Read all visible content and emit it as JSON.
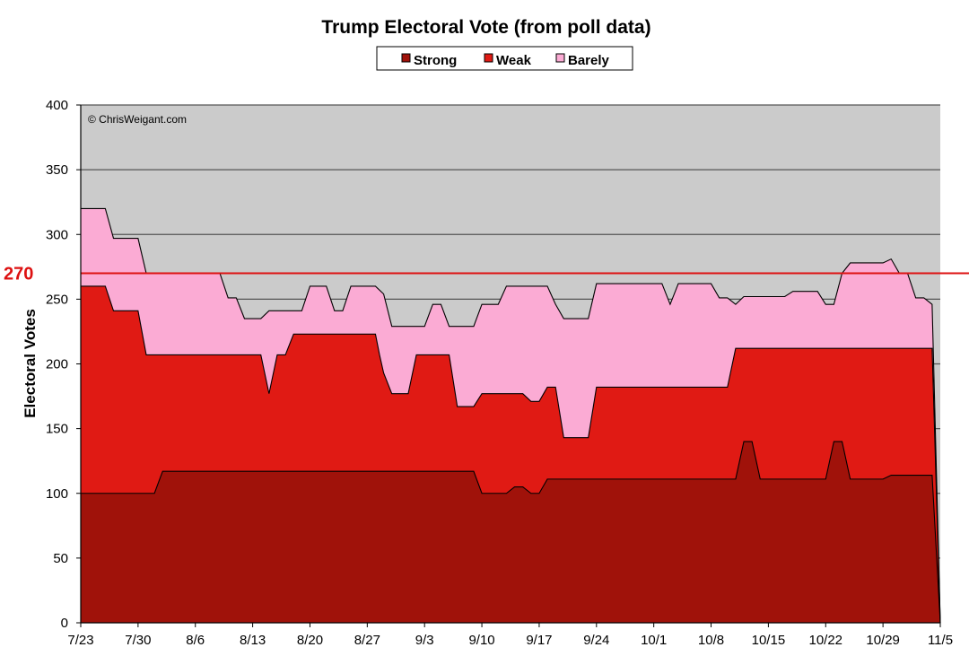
{
  "chart_data": {
    "type": "area",
    "title": "Trump Electoral Vote (from poll data)",
    "ylabel": "Electoral Votes",
    "xlabel": "",
    "ylim": [
      0,
      400
    ],
    "yticks": [
      0,
      50,
      100,
      150,
      200,
      250,
      300,
      350,
      400
    ],
    "x_tick_labels": [
      "7/23",
      "7/30",
      "8/6",
      "8/13",
      "8/20",
      "8/27",
      "9/3",
      "9/10",
      "9/17",
      "9/24",
      "10/1",
      "10/8",
      "10/15",
      "10/22",
      "10/29",
      "11/5"
    ],
    "x_range_days": [
      0,
      105
    ],
    "grid": true,
    "stacked": true,
    "legend_position": "top-center",
    "annotation": "© ChrisWeigant.com",
    "reference_line": {
      "value": 270,
      "label": "270",
      "color": "#dd1111"
    },
    "series": [
      {
        "name": "Strong",
        "color": "#a0120a",
        "points": [
          [
            0,
            100
          ],
          [
            3,
            100
          ],
          [
            9,
            100
          ],
          [
            10,
            117
          ],
          [
            48,
            117
          ],
          [
            49,
            100
          ],
          [
            52,
            100
          ],
          [
            53,
            105
          ],
          [
            54,
            105
          ],
          [
            55,
            100
          ],
          [
            56,
            100
          ],
          [
            57,
            111
          ],
          [
            80,
            111
          ],
          [
            81,
            140
          ],
          [
            82,
            140
          ],
          [
            83,
            111
          ],
          [
            91,
            111
          ],
          [
            92,
            140
          ],
          [
            93,
            140
          ],
          [
            94,
            111
          ],
          [
            98,
            111
          ],
          [
            99,
            114
          ],
          [
            104,
            114
          ],
          [
            105,
            0
          ]
        ]
      },
      {
        "name": "Weak",
        "color": "#e01a14",
        "points": [
          [
            0,
            260
          ],
          [
            3,
            260
          ],
          [
            4,
            241
          ],
          [
            7,
            241
          ],
          [
            8,
            207
          ],
          [
            22,
            207
          ],
          [
            23,
            177
          ],
          [
            24,
            207
          ],
          [
            25,
            207
          ],
          [
            26,
            223
          ],
          [
            36,
            223
          ],
          [
            36.5,
            207
          ],
          [
            37,
            193
          ],
          [
            38,
            177
          ],
          [
            40,
            177
          ],
          [
            41,
            207
          ],
          [
            45,
            207
          ],
          [
            46,
            167
          ],
          [
            48,
            167
          ],
          [
            49,
            177
          ],
          [
            54,
            177
          ],
          [
            55,
            171
          ],
          [
            56,
            171
          ],
          [
            57,
            182
          ],
          [
            58,
            182
          ],
          [
            59,
            143
          ],
          [
            62,
            143
          ],
          [
            63,
            182
          ],
          [
            79,
            182
          ],
          [
            80,
            212
          ],
          [
            104,
            212
          ],
          [
            105,
            0
          ]
        ]
      },
      {
        "name": "Barely",
        "color": "#fbabd4",
        "points": [
          [
            0,
            320
          ],
          [
            3,
            320
          ],
          [
            4,
            297
          ],
          [
            7,
            297
          ],
          [
            8,
            270
          ],
          [
            17,
            270
          ],
          [
            18,
            251
          ],
          [
            19,
            251
          ],
          [
            20,
            235
          ],
          [
            22,
            235
          ],
          [
            23,
            241
          ],
          [
            27,
            241
          ],
          [
            28,
            260
          ],
          [
            30,
            260
          ],
          [
            31,
            241
          ],
          [
            32,
            241
          ],
          [
            33,
            260
          ],
          [
            36,
            260
          ],
          [
            37,
            254
          ],
          [
            38,
            229
          ],
          [
            42,
            229
          ],
          [
            43,
            246
          ],
          [
            44,
            246
          ],
          [
            45,
            229
          ],
          [
            48,
            229
          ],
          [
            49,
            246
          ],
          [
            51,
            246
          ],
          [
            52,
            260
          ],
          [
            57,
            260
          ],
          [
            58,
            246
          ],
          [
            59,
            235
          ],
          [
            62,
            235
          ],
          [
            63,
            262
          ],
          [
            71,
            262
          ],
          [
            72,
            246
          ],
          [
            73,
            262
          ],
          [
            77,
            262
          ],
          [
            78,
            251
          ],
          [
            79,
            251
          ],
          [
            80,
            246
          ],
          [
            81,
            252
          ],
          [
            86,
            252
          ],
          [
            87,
            256
          ],
          [
            90,
            256
          ],
          [
            91,
            246
          ],
          [
            92,
            246
          ],
          [
            93,
            270
          ],
          [
            94,
            278
          ],
          [
            98,
            278
          ],
          [
            99,
            281
          ],
          [
            100,
            270
          ],
          [
            101,
            270
          ],
          [
            102,
            251
          ],
          [
            103,
            251
          ],
          [
            104,
            246
          ],
          [
            105,
            0
          ]
        ]
      }
    ]
  }
}
